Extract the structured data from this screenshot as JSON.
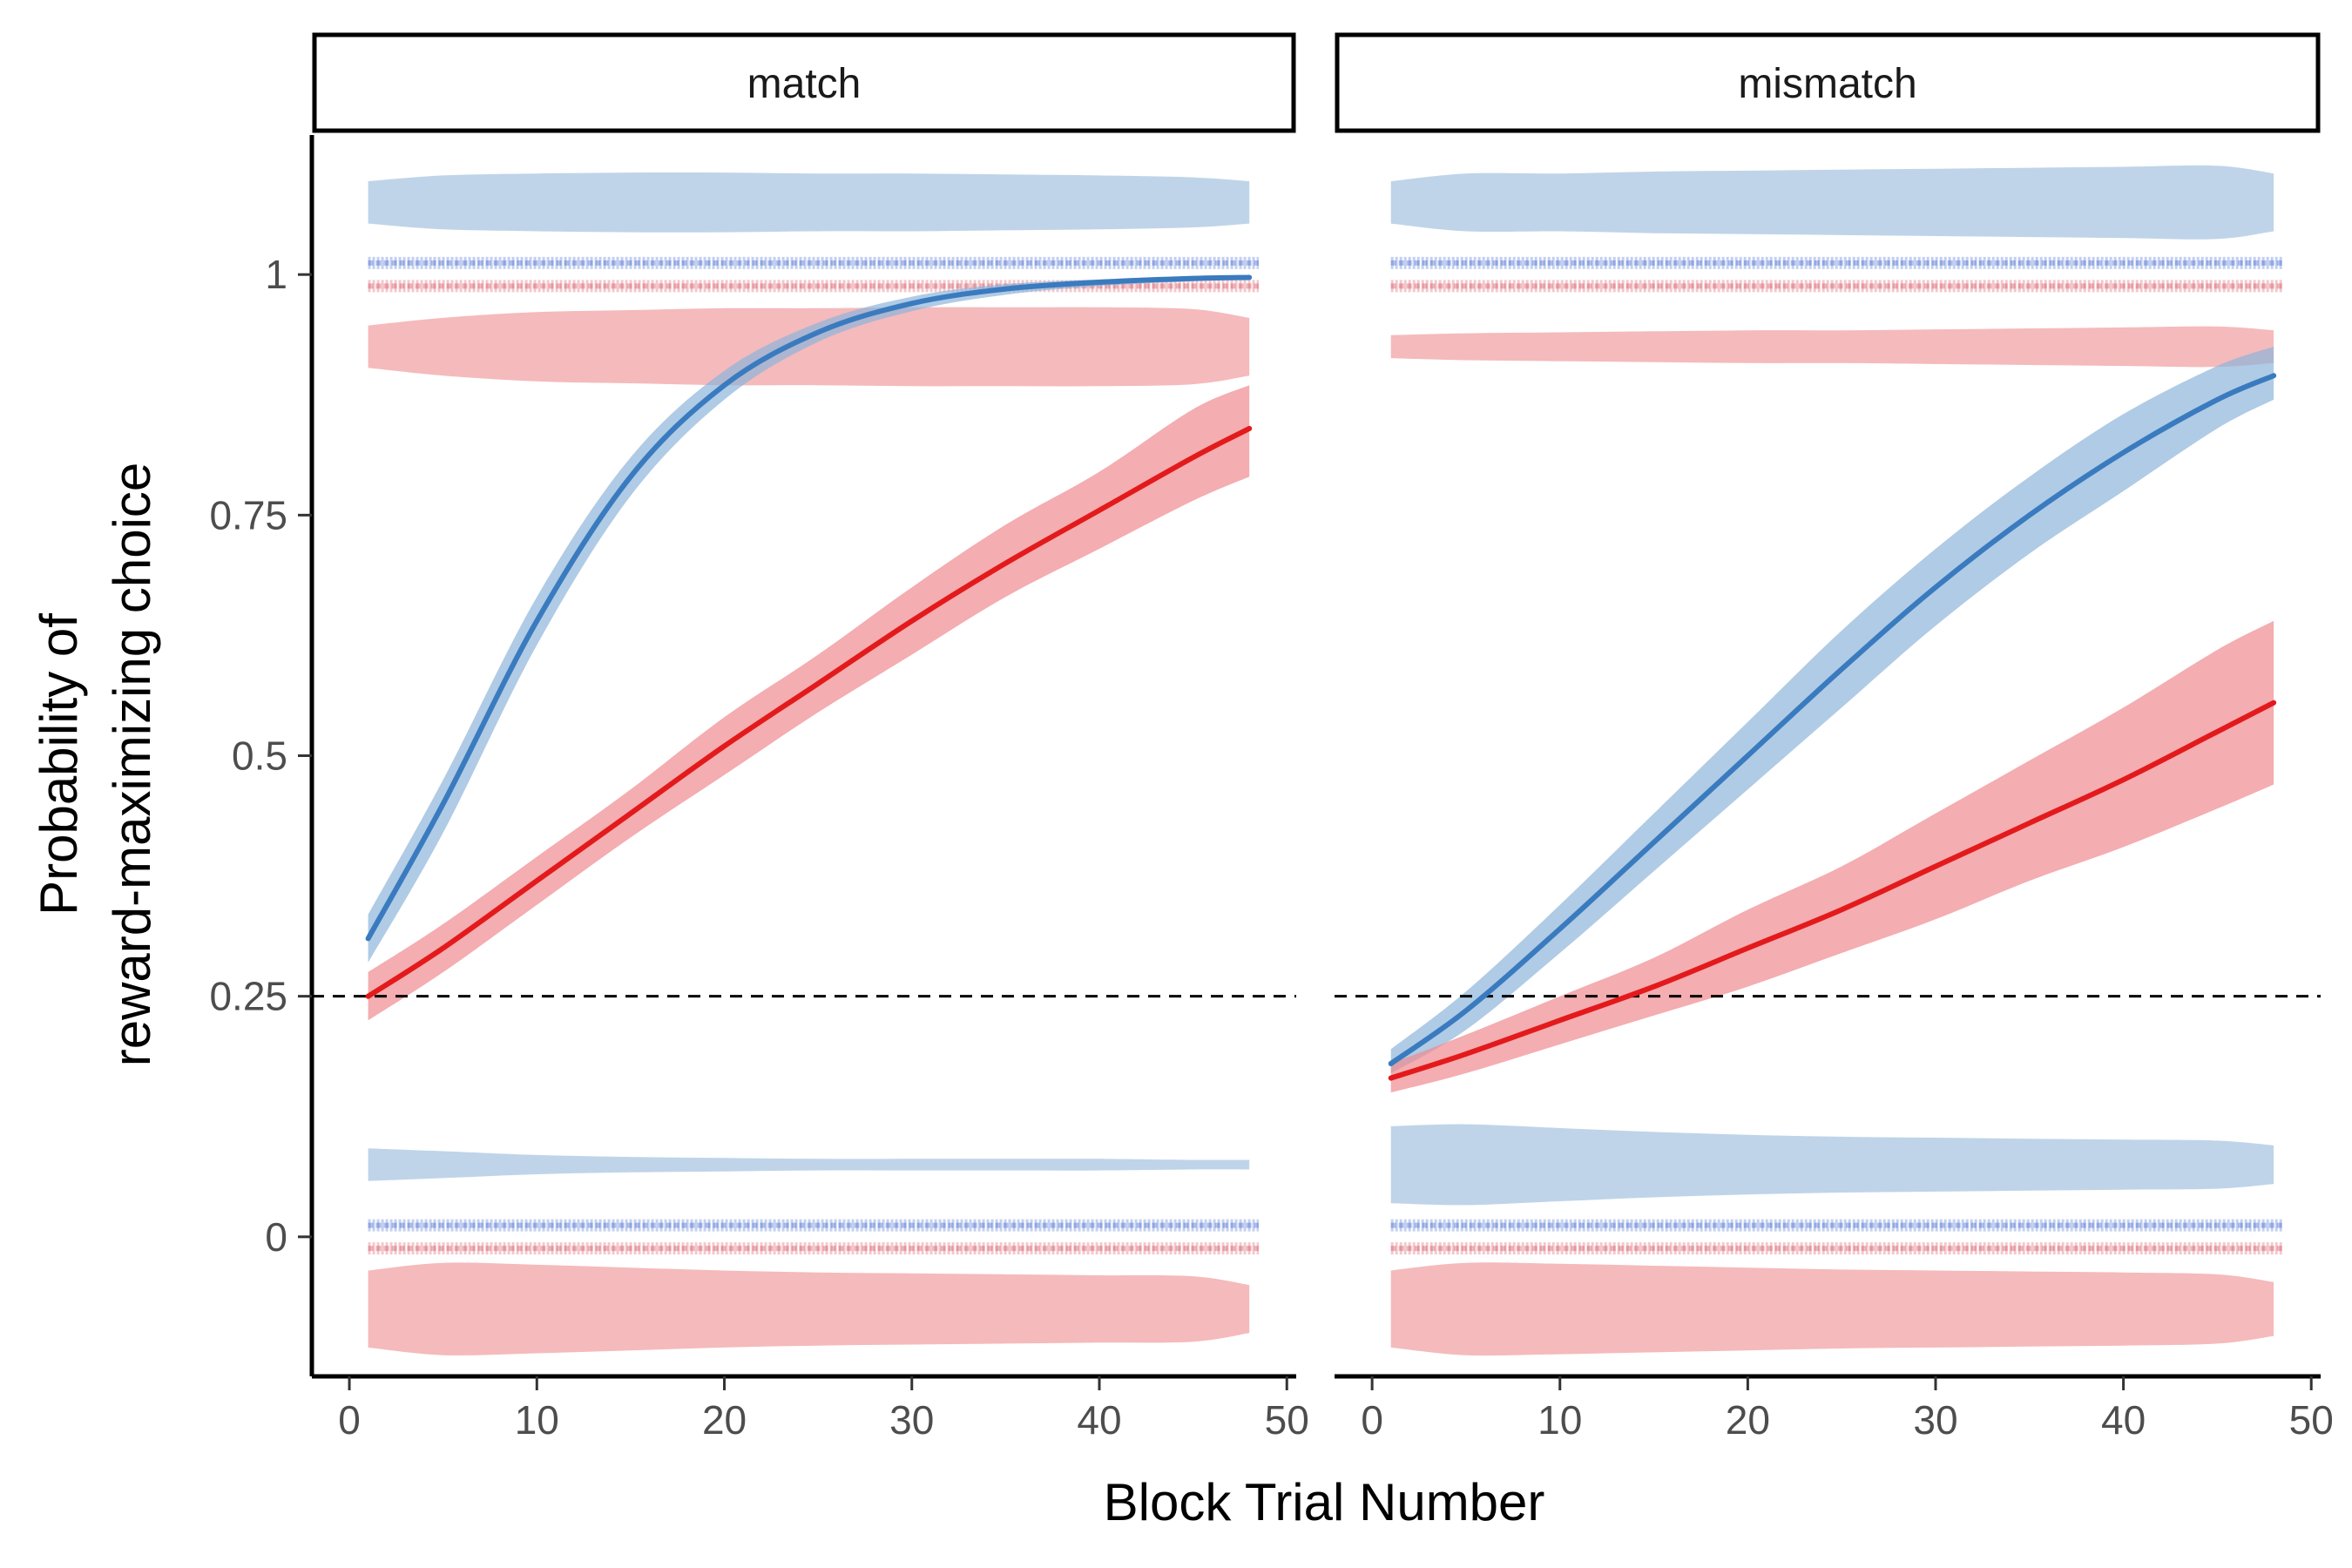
{
  "chart_data": {
    "type": "line",
    "xlabel": "Block Trial Number",
    "ylabel_lines": [
      "Probability of",
      "reward-maximizing choice"
    ],
    "xlim": [
      -2,
      50.5
    ],
    "ylim": [
      -0.145,
      1.145
    ],
    "x_ticks": [
      0,
      10,
      20,
      30,
      40,
      50
    ],
    "x_tick_labels": [
      "0",
      "10",
      "20",
      "30",
      "40",
      "50"
    ],
    "y_ticks": [
      0,
      0.25,
      0.5,
      0.75,
      1
    ],
    "y_tick_labels": [
      "0",
      "0.25",
      "0.5",
      "0.75",
      "1"
    ],
    "reference_line": {
      "y": 0.25,
      "style": "dashed",
      "color": "#000000"
    },
    "colors": {
      "blue_line": "#3a7bbf",
      "blue_band": "#8fb5da",
      "blue_violin": "#a9c6e1",
      "blue_points": "#2a55c9",
      "red_line": "#e31a1c",
      "red_band": "#ef8a8e",
      "red_violin": "#f2a3a6",
      "red_points": "#d23a48"
    },
    "panels": [
      {
        "strip": "match",
        "series": [
          {
            "color": "blue",
            "x": [
              1,
              5,
              10,
              15,
              20,
              25,
              30,
              35,
              40,
              45,
              48
            ],
            "y": [
              0.31,
              0.45,
              0.64,
              0.79,
              0.885,
              0.94,
              0.97,
              0.985,
              0.992,
              0.996,
              0.997
            ],
            "lower": [
              0.285,
              0.42,
              0.615,
              0.77,
              0.87,
              0.93,
              0.962,
              0.979,
              0.988,
              0.993,
              0.995
            ],
            "upper": [
              0.335,
              0.475,
              0.665,
              0.81,
              0.9,
              0.95,
              0.977,
              0.99,
              0.995,
              0.998,
              0.999
            ]
          },
          {
            "color": "red",
            "x": [
              1,
              5,
              10,
              15,
              20,
              25,
              30,
              35,
              40,
              45,
              48
            ],
            "y": [
              0.25,
              0.3,
              0.37,
              0.44,
              0.51,
              0.575,
              0.64,
              0.7,
              0.755,
              0.81,
              0.84
            ],
            "lower": [
              0.225,
              0.275,
              0.345,
              0.415,
              0.48,
              0.545,
              0.605,
              0.665,
              0.715,
              0.765,
              0.79
            ],
            "upper": [
              0.275,
              0.325,
              0.395,
              0.465,
              0.54,
              0.605,
              0.675,
              0.74,
              0.795,
              0.86,
              0.885
            ]
          }
        ]
      },
      {
        "strip": "mismatch",
        "series": [
          {
            "color": "blue",
            "x": [
              1,
              5,
              10,
              15,
              20,
              25,
              30,
              35,
              40,
              45,
              48
            ],
            "y": [
              0.18,
              0.235,
              0.32,
              0.41,
              0.5,
              0.59,
              0.675,
              0.75,
              0.815,
              0.87,
              0.895
            ],
            "lower": [
              0.17,
              0.215,
              0.295,
              0.38,
              0.465,
              0.55,
              0.635,
              0.71,
              0.775,
              0.84,
              0.87
            ],
            "upper": [
              0.195,
              0.255,
              0.345,
              0.44,
              0.535,
              0.63,
              0.715,
              0.79,
              0.855,
              0.905,
              0.925
            ]
          },
          {
            "color": "red",
            "x": [
              1,
              5,
              10,
              15,
              20,
              25,
              30,
              35,
              40,
              45,
              48
            ],
            "y": [
              0.165,
              0.19,
              0.225,
              0.26,
              0.3,
              0.34,
              0.385,
              0.43,
              0.475,
              0.525,
              0.555
            ],
            "lower": [
              0.15,
              0.17,
              0.2,
              0.23,
              0.26,
              0.295,
              0.33,
              0.37,
              0.405,
              0.445,
              0.47
            ],
            "upper": [
              0.18,
              0.21,
              0.25,
              0.29,
              0.34,
              0.385,
              0.44,
              0.495,
              0.55,
              0.61,
              0.64
            ]
          }
        ]
      }
    ]
  }
}
